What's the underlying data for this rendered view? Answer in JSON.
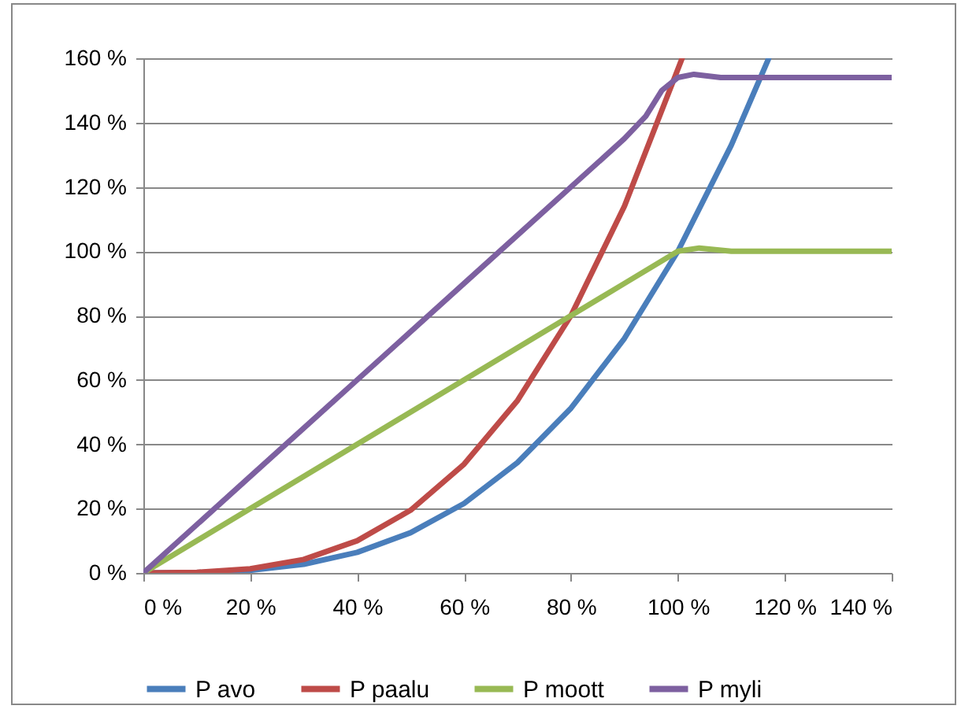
{
  "chart_data": {
    "type": "line",
    "grid": "y",
    "legend": "bottom",
    "marker": "none",
    "line_style": "solid",
    "xlim": [
      0,
      140
    ],
    "ylim": [
      0,
      160
    ],
    "xticks": [
      {
        "value": 0,
        "label": "0 %"
      },
      {
        "value": 20,
        "label": "20 %"
      },
      {
        "value": 40,
        "label": "40 %"
      },
      {
        "value": 60,
        "label": "60 %"
      },
      {
        "value": 80,
        "label": "80 %"
      },
      {
        "value": 100,
        "label": "100 %"
      },
      {
        "value": 120,
        "label": "120 %"
      },
      {
        "value": 140,
        "label": "140 %"
      }
    ],
    "yticks": [
      {
        "value": 0,
        "label": "0 %"
      },
      {
        "value": 20,
        "label": "20 %"
      },
      {
        "value": 40,
        "label": "40 %"
      },
      {
        "value": 60,
        "label": "60 %"
      },
      {
        "value": 80,
        "label": "80 %"
      },
      {
        "value": 100,
        "label": "100 %"
      },
      {
        "value": 120,
        "label": "120 %"
      },
      {
        "value": 140,
        "label": "140 %"
      },
      {
        "value": 160,
        "label": "160 %"
      }
    ],
    "series": [
      {
        "name": "P avo",
        "color": "#4a7ebb",
        "x": [
          0,
          10,
          20,
          30,
          40,
          50,
          60,
          70,
          80,
          90,
          100,
          110,
          117
        ],
        "values": [
          0,
          0.1,
          0.8,
          2.7,
          6.4,
          12.5,
          21.6,
          34.3,
          51.2,
          72.9,
          100,
          133,
          160
        ]
      },
      {
        "name": "P paalu",
        "color": "#be4b48",
        "x": [
          0,
          10,
          20,
          30,
          40,
          50,
          60,
          70,
          80,
          90,
          100.8
        ],
        "values": [
          0,
          0.2,
          1.3,
          4.2,
          10,
          19.5,
          33.8,
          53.6,
          80,
          114,
          160
        ]
      },
      {
        "name": "P moott",
        "color": "#98b954",
        "x": [
          0,
          20,
          40,
          60,
          80,
          90,
          100,
          104,
          110,
          120,
          130,
          140
        ],
        "values": [
          0,
          20,
          40,
          60,
          80,
          90,
          100,
          101,
          100,
          100,
          100,
          100
        ]
      },
      {
        "name": "P myli",
        "color": "#7d60a0",
        "x": [
          0,
          20,
          40,
          60,
          80,
          90,
          94,
          97,
          100,
          103,
          108,
          120,
          130,
          140
        ],
        "values": [
          0,
          30,
          60,
          90,
          120,
          135,
          142,
          150,
          154,
          155,
          154,
          154,
          154,
          154
        ]
      }
    ]
  }
}
